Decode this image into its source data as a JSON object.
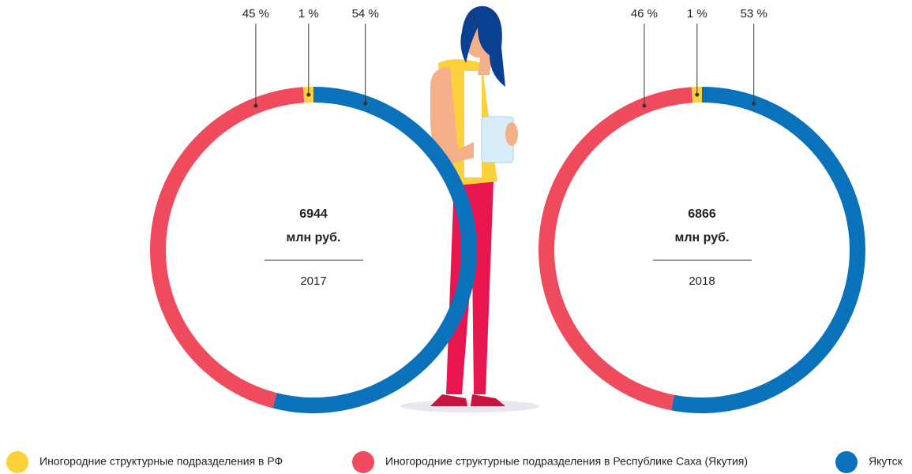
{
  "legend": {
    "categories": [
      "Иногородние структурные подразделения в РФ",
      "Иногородние структурные подразделения в Республике Саха (Якутия)",
      "Якутск"
    ],
    "colors": [
      "#fdd13a",
      "#ef4b5c",
      "#0a72bb"
    ]
  },
  "chart_data": [
    {
      "type": "donut",
      "total": 6944,
      "unit": "млн руб.",
      "year": "2017",
      "values": [
        1,
        45,
        54
      ],
      "value_labels": [
        "1 %",
        "45 %",
        "54 %"
      ]
    },
    {
      "type": "donut",
      "total": 6866,
      "unit": "млн руб.",
      "year": "2018",
      "values": [
        1,
        46,
        53
      ],
      "value_labels": [
        "1 %",
        "46 %",
        "53 %"
      ]
    }
  ]
}
